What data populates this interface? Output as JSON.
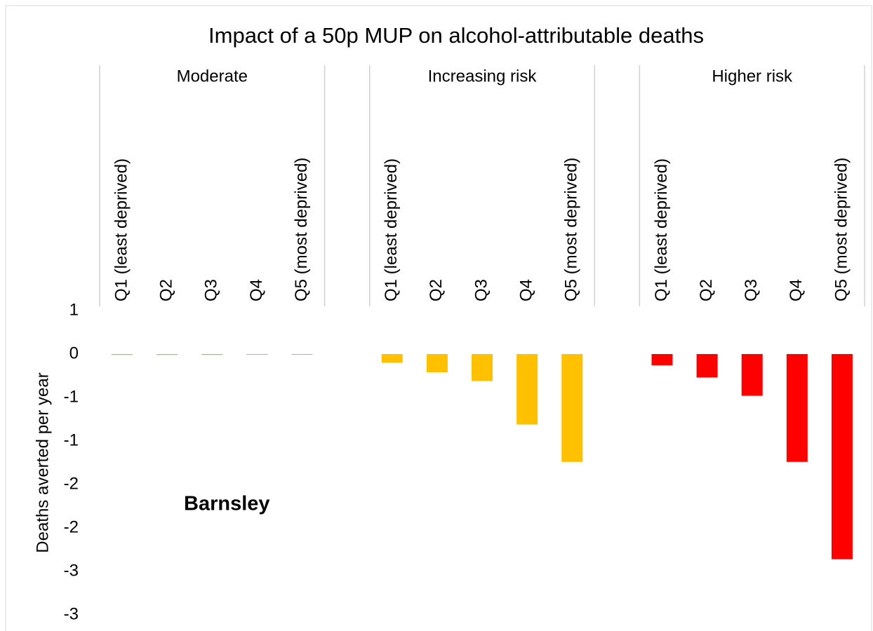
{
  "chart_data": {
    "type": "bar",
    "title": "Impact of a 50p MUP on alcohol-attributable  deaths",
    "y_label": "Deaths averted per year",
    "annotation": "Barnsley",
    "groups": [
      {
        "name": "Moderate",
        "color": "#92d050",
        "categories": [
          "Q1  (least deprived)",
          "Q2",
          "Q3",
          "Q4",
          "Q5 (most deprived)"
        ],
        "values": [
          -0.01,
          -0.01,
          -0.01,
          -0.005,
          -0.005
        ]
      },
      {
        "name": "Increasing risk",
        "color": "#ffc000",
        "categories": [
          "Q1  (least deprived)",
          "Q2",
          "Q3",
          "Q4",
          "Q5 (most deprived)"
        ],
        "values": [
          -0.1,
          -0.21,
          -0.31,
          -0.81,
          -1.24
        ]
      },
      {
        "name": "Higher risk",
        "color": "#ff0000",
        "categories": [
          "Q1  (least deprived)",
          "Q2",
          "Q3",
          "Q4",
          "Q5 (most deprived)"
        ],
        "values": [
          -0.13,
          -0.27,
          -0.48,
          -1.24,
          -2.36
        ]
      }
    ],
    "ylim": [
      -3,
      0.5
    ],
    "yticks": [
      {
        "value": 0.5,
        "label": "1"
      },
      0,
      {
        "value": -0.5,
        "label": "-1"
      },
      -1,
      {
        "value": -1.5,
        "label": "-2"
      },
      -2,
      {
        "value": -2.5,
        "label": "-3"
      },
      -3
    ],
    "grid": false
  }
}
